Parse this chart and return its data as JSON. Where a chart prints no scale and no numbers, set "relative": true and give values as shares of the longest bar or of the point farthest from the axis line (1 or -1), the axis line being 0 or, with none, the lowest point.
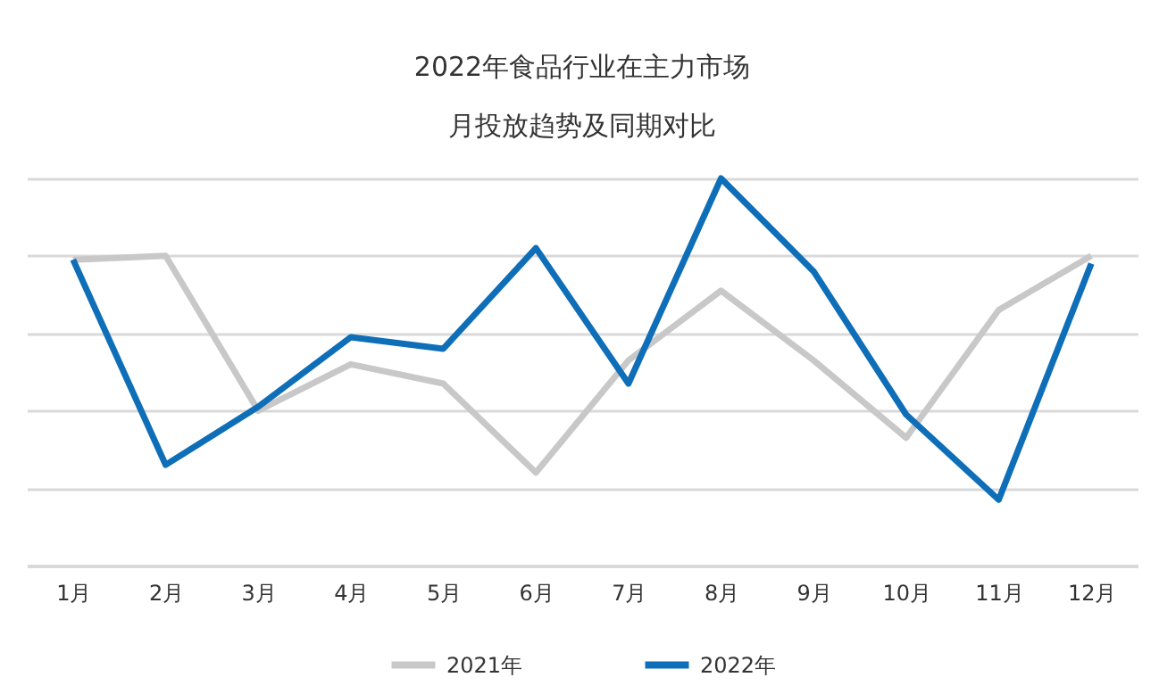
{
  "chart_data": {
    "type": "line",
    "title": "2022年食品行业在主力市场",
    "subtitle": "月投放趋势及同期对比",
    "relative": true,
    "grid": "y",
    "legend": "bottom",
    "marker": "none",
    "line_style": "solid",
    "categories": [
      "1月",
      "2月",
      "3月",
      "4月",
      "5月",
      "6月",
      "7月",
      "8月",
      "9月",
      "10月",
      "11月",
      "12月"
    ],
    "series": [
      {
        "name": "2021年",
        "color": "#c8c8c8",
        "values": [
          0.79,
          0.8,
          0.4,
          0.52,
          0.47,
          0.24,
          0.53,
          0.71,
          0.53,
          0.33,
          0.66,
          0.8
        ]
      },
      {
        "name": "2022年",
        "color": "#0e6eb8",
        "values": [
          0.79,
          0.26,
          0.41,
          0.59,
          0.56,
          0.82,
          0.47,
          1,
          0.76,
          0.39,
          0.17,
          0.78
        ]
      }
    ]
  }
}
